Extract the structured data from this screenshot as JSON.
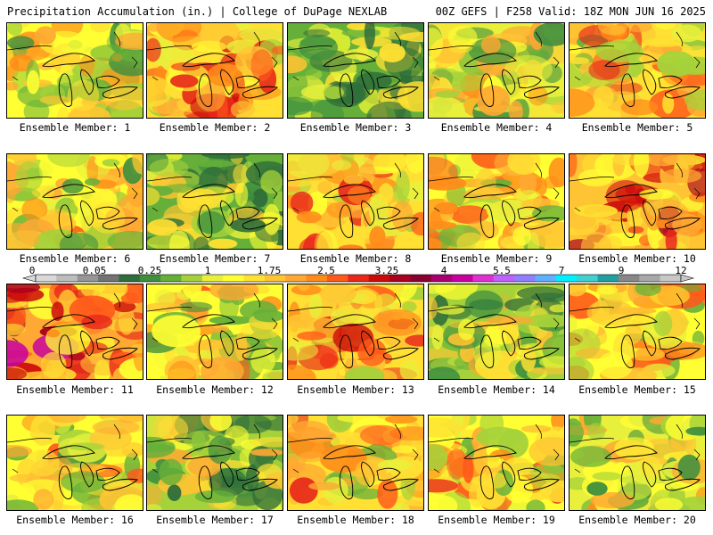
{
  "header": {
    "left": "Precipitation Accumulation (in.) | College of DuPage NEXLAB",
    "right": "00Z GEFS | F258 Valid: 18Z MON JUN 16 2025"
  },
  "members": [
    {
      "label": "Ensemble Member: 1",
      "wetness": 0.45
    },
    {
      "label": "Ensemble Member: 2",
      "wetness": 0.62
    },
    {
      "label": "Ensemble Member: 3",
      "wetness": 0.22
    },
    {
      "label": "Ensemble Member: 4",
      "wetness": 0.42
    },
    {
      "label": "Ensemble Member: 5",
      "wetness": 0.55
    },
    {
      "label": "Ensemble Member: 6",
      "wetness": 0.48
    },
    {
      "label": "Ensemble Member: 7",
      "wetness": 0.2
    },
    {
      "label": "Ensemble Member: 8",
      "wetness": 0.58
    },
    {
      "label": "Ensemble Member: 9",
      "wetness": 0.52
    },
    {
      "label": "Ensemble Member: 10",
      "wetness": 0.72
    },
    {
      "label": "Ensemble Member: 11",
      "wetness": 0.78
    },
    {
      "label": "Ensemble Member: 12",
      "wetness": 0.45
    },
    {
      "label": "Ensemble Member: 13",
      "wetness": 0.6
    },
    {
      "label": "Ensemble Member: 14",
      "wetness": 0.3
    },
    {
      "label": "Ensemble Member: 15",
      "wetness": 0.5
    },
    {
      "label": "Ensemble Member: 16",
      "wetness": 0.48
    },
    {
      "label": "Ensemble Member: 17",
      "wetness": 0.32
    },
    {
      "label": "Ensemble Member: 18",
      "wetness": 0.56
    },
    {
      "label": "Ensemble Member: 19",
      "wetness": 0.52
    },
    {
      "label": "Ensemble Member: 20",
      "wetness": 0.4
    }
  ],
  "colorbar": {
    "tick_labels": [
      "0",
      "0.05",
      "0.25",
      "1",
      "1.75",
      "2.5",
      "3.25",
      "4",
      "5.5",
      "7",
      "9",
      "12"
    ],
    "colors": [
      "#d9d9d9",
      "#bdbdbd",
      "#969696",
      "#737373",
      "#2f6e3a",
      "#3f8f3f",
      "#66b03a",
      "#a5d23a",
      "#e8f03c",
      "#ffff33",
      "#ffe033",
      "#ffc433",
      "#ffa833",
      "#ff8c1a",
      "#ff5a1a",
      "#e8281a",
      "#cc0a0a",
      "#a8001e",
      "#8a0030",
      "#a8006e",
      "#c800a0",
      "#e030d0",
      "#c060ff",
      "#9080ff",
      "#60b0ff",
      "#00f0ff",
      "#40d0d0",
      "#20a0a0",
      "#888888",
      "#a8a8a8",
      "#c8c8c8"
    ]
  }
}
